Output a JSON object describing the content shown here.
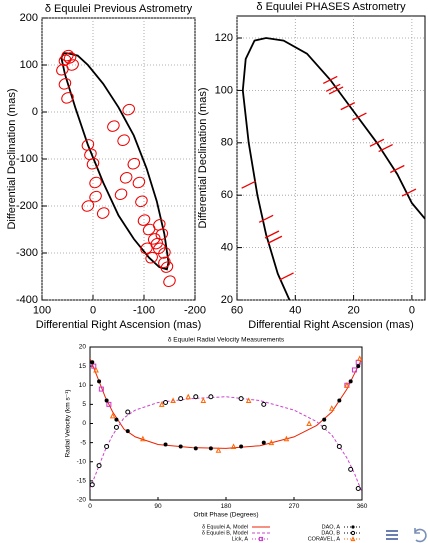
{
  "chart_data": [
    {
      "type": "scatter",
      "title": "δ Equulei Previous Astrometry",
      "x_label": "Differential Right Ascension (mas)",
      "y_label": "Differential Declination (mas)",
      "xlim": [
        100,
        -200
      ],
      "ylim": [
        -400,
        200
      ],
      "xticks": [
        100,
        0,
        -100,
        -200
      ],
      "yticks": [
        200,
        100,
        0,
        -100,
        -200,
        -300,
        -400
      ],
      "grid": true,
      "marker": "ellipse",
      "curve": {
        "color": "#000000",
        "x": [
          50,
          30,
          10,
          -20,
          -50,
          -80,
          -105,
          -125,
          -140,
          -148,
          -145,
          -130,
          -110,
          -80,
          -50,
          -20,
          10,
          35,
          55,
          62,
          58,
          50
        ],
        "y": [
          125,
          120,
          100,
          60,
          10,
          -50,
          -120,
          -190,
          -260,
          -320,
          -335,
          -330,
          -310,
          -270,
          -220,
          -150,
          -70,
          10,
          80,
          115,
          125,
          125
        ]
      },
      "points": {
        "color": "#ee0000",
        "x": [
          55,
          50,
          45,
          40,
          60,
          55,
          50,
          10,
          5,
          0,
          -5,
          10,
          -5,
          -40,
          -60,
          -70,
          -80,
          -90,
          -95,
          -100,
          -110,
          -120,
          -125,
          -130,
          -135,
          -140,
          -115,
          -105,
          -140,
          -145,
          -150,
          -130,
          -20,
          -55,
          -65
        ],
        "y": [
          110,
          120,
          115,
          100,
          90,
          60,
          30,
          -70,
          -90,
          -110,
          -150,
          -200,
          -180,
          -30,
          -60,
          5,
          -110,
          -150,
          -190,
          -230,
          -250,
          -270,
          -280,
          -290,
          -260,
          -300,
          -310,
          -290,
          -320,
          -330,
          -360,
          -240,
          -215,
          -175,
          -140
        ]
      }
    },
    {
      "type": "scatter",
      "title": "δ Equulei PHASES Astrometry",
      "x_label": "Differential Right Ascension (mas)",
      "y_label": "Differential Declination (mas)",
      "xlim": [
        60,
        -4.5
      ],
      "ylim": [
        20,
        128.4
      ],
      "xticks": [
        60,
        40,
        20,
        0
      ],
      "yticks": [
        20,
        40,
        60,
        80,
        100,
        120
      ],
      "grid": true,
      "marker": "dash",
      "curve": {
        "color": "#000000",
        "x": [
          42,
          46,
          50,
          53,
          56,
          58,
          57,
          54,
          50,
          44,
          36,
          28,
          20,
          12,
          5,
          0,
          -4.5
        ],
        "y": [
          20,
          30,
          45,
          60,
          80,
          100,
          112,
          119,
          120,
          119,
          114,
          104,
          92,
          80,
          68,
          57,
          51
        ]
      },
      "points": {
        "color": "#ee0000",
        "x": [
          56,
          50,
          48,
          47,
          43,
          28,
          27,
          26,
          22,
          18,
          12,
          9,
          5,
          1
        ],
        "y": [
          64,
          51,
          45,
          43,
          29,
          104,
          101,
          100,
          94,
          90,
          80,
          78,
          70,
          61
        ]
      }
    },
    {
      "type": "line",
      "title": "δ Equulei Radial Velocity Measurements",
      "x_label": "Orbit Phase (Degrees)",
      "y_label": "Radial Velocity (km s⁻¹)",
      "xlim": [
        0,
        360
      ],
      "ylim": [
        -20,
        20
      ],
      "xticks": [
        0,
        90,
        180,
        270,
        360
      ],
      "yticks": [
        20,
        15,
        10,
        5,
        0,
        -5,
        -10,
        -15,
        -20
      ],
      "grid": false,
      "series": [
        {
          "name": "δ Equulei A, Model",
          "color": "#ee2200",
          "style": "solid",
          "x": [
            0,
            10,
            20,
            30,
            45,
            60,
            90,
            135,
            180,
            225,
            270,
            300,
            320,
            340,
            350,
            360
          ],
          "values": [
            17,
            12,
            7,
            3,
            -1.5,
            -3.5,
            -5.5,
            -6.3,
            -6.5,
            -5.8,
            -3.5,
            -0.5,
            3,
            9,
            13,
            17
          ]
        },
        {
          "name": "δ Equulei B, Model",
          "color": "#cc44cc",
          "style": "dashed",
          "x": [
            0,
            10,
            20,
            30,
            45,
            60,
            90,
            135,
            180,
            225,
            270,
            300,
            320,
            340,
            350,
            360
          ],
          "values": [
            -17,
            -12,
            -7,
            -3,
            1.5,
            3.5,
            5.5,
            6.5,
            7,
            6,
            3.5,
            0.5,
            -3,
            -9,
            -13,
            -18
          ]
        },
        {
          "name": "Lick, A",
          "color": "#cc33cc",
          "style": "points",
          "marker": "square",
          "x": [
            5,
            15,
            25,
            340,
            350,
            355
          ],
          "values": [
            15,
            9,
            5,
            10,
            14,
            16
          ]
        },
        {
          "name": "DAO, A",
          "color": "#000000",
          "style": "points",
          "marker": "circle",
          "x": [
            3,
            12,
            22,
            35,
            50,
            100,
            120,
            140,
            160,
            200,
            230,
            310,
            330,
            345,
            355
          ],
          "values": [
            16,
            11,
            6,
            1,
            -2,
            -5.5,
            -6,
            -6.5,
            -6.5,
            -6,
            -5,
            1,
            6,
            11,
            15
          ]
        },
        {
          "name": "DAO, B",
          "color": "#000000",
          "style": "points",
          "marker": "open",
          "x": [
            3,
            12,
            22,
            35,
            50,
            100,
            120,
            140,
            160,
            200,
            230,
            310,
            330,
            345,
            355
          ],
          "values": [
            -16,
            -11,
            -6,
            -1,
            3,
            5.5,
            6.5,
            7,
            7,
            6.5,
            5,
            -1,
            -6,
            -12,
            -17
          ]
        },
        {
          "name": "CORAVEL, A",
          "color": "#ff6600",
          "style": "points",
          "marker": "triangle",
          "x": [
            8,
            30,
            70,
            95,
            110,
            130,
            150,
            170,
            190,
            210,
            240,
            260,
            290,
            320,
            340,
            357
          ],
          "values": [
            14,
            2,
            -4,
            5,
            6,
            7,
            6,
            -7,
            -6,
            6,
            -5,
            -4,
            0,
            4,
            10,
            17
          ]
        }
      ]
    }
  ]
}
